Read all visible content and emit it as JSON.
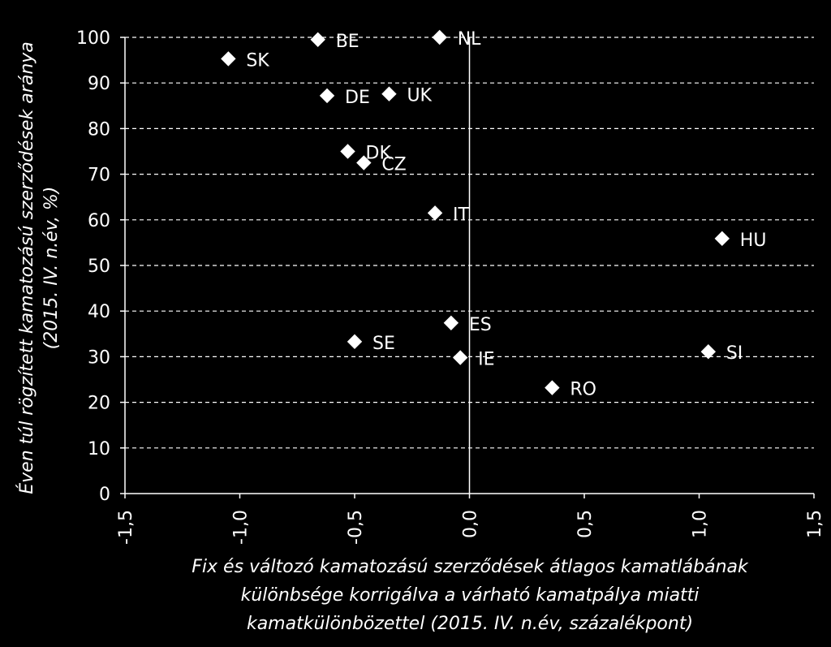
{
  "chart_data": {
    "type": "scatter",
    "title": "",
    "xlabel": [
      "Fix és változó kamatozású szerződések átlagos kamatlábának",
      "különbsége korrigálva a várható kamatpálya miatti",
      "kamatkülönbözettel (2015. IV. n.év, százalékpont)"
    ],
    "ylabel": [
      "Éven túl rögzített kamatozású szerződések aránya",
      "(2015. IV. n.év, %)"
    ],
    "xlim": [
      -1.5,
      1.5
    ],
    "ylim": [
      0,
      100
    ],
    "x_ticks": [
      -1.5,
      -1.0,
      -0.5,
      0.0,
      0.5,
      1.0,
      1.5
    ],
    "x_tick_labels": [
      "-1,5",
      "-1,0",
      "-0,5",
      "0,0",
      "0,5",
      "1,0",
      "1,5"
    ],
    "y_ticks": [
      0,
      10,
      20,
      30,
      40,
      50,
      60,
      70,
      80,
      90,
      100
    ],
    "y_tick_labels": [
      "0",
      "10",
      "20",
      "30",
      "40",
      "50",
      "60",
      "70",
      "80",
      "90",
      "100"
    ],
    "grid": "horizontal-dashed",
    "marker": "diamond",
    "colors": {
      "background": "#000000",
      "foreground": "#ffffff"
    },
    "points": [
      {
        "label": "SK",
        "x": -1.05,
        "y": 95.3
      },
      {
        "label": "BE",
        "x": -0.66,
        "y": 99.5
      },
      {
        "label": "NL",
        "x": -0.13,
        "y": 100.0
      },
      {
        "label": "DE",
        "x": -0.62,
        "y": 87.2
      },
      {
        "label": "UK",
        "x": -0.35,
        "y": 87.6
      },
      {
        "label": "DK",
        "x": -0.53,
        "y": 75.0
      },
      {
        "label": "CZ",
        "x": -0.46,
        "y": 72.5
      },
      {
        "label": "IT",
        "x": -0.15,
        "y": 61.5
      },
      {
        "label": "HU",
        "x": 1.1,
        "y": 55.9
      },
      {
        "label": "ES",
        "x": -0.08,
        "y": 37.4
      },
      {
        "label": "SE",
        "x": -0.5,
        "y": 33.3
      },
      {
        "label": "IE",
        "x": -0.04,
        "y": 29.8
      },
      {
        "label": "SI",
        "x": 1.04,
        "y": 31.1
      },
      {
        "label": "RO",
        "x": 0.36,
        "y": 23.2
      }
    ]
  }
}
